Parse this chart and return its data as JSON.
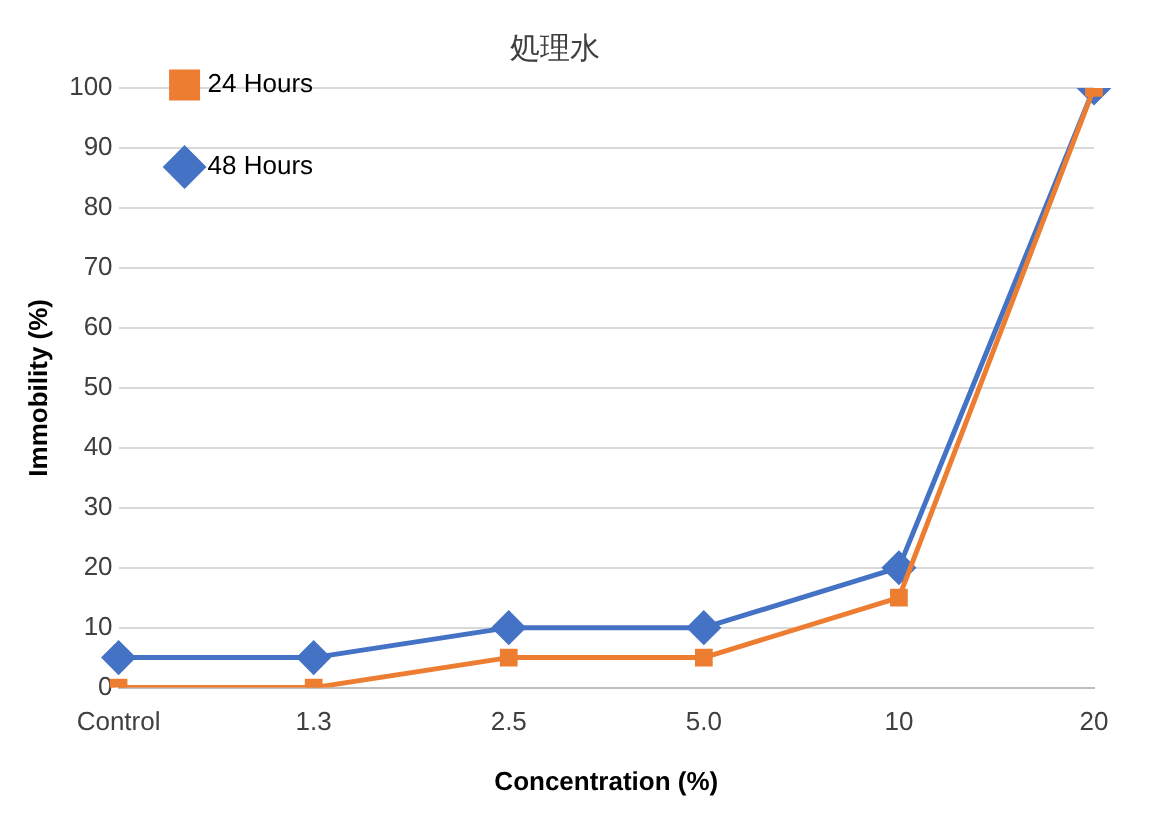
{
  "chart_data": {
    "type": "line",
    "title": "処理水",
    "xlabel": "Concentration (%)",
    "ylabel": "Immobility (%)",
    "categories": [
      "Control",
      "1.3",
      "2.5",
      "5.0",
      "10",
      "20"
    ],
    "series": [
      {
        "name": "24 Hours",
        "color": "#ed7d31",
        "marker": "square",
        "values": [
          0,
          0,
          5,
          5,
          15,
          100
        ]
      },
      {
        "name": "48 Hours",
        "color": "#4472c4",
        "marker": "diamond",
        "values": [
          5,
          5,
          10,
          10,
          20,
          100
        ]
      }
    ],
    "ylim": [
      0,
      100
    ],
    "yticks": [
      0,
      10,
      20,
      30,
      40,
      50,
      60,
      70,
      80,
      90,
      100
    ],
    "grid": "y",
    "legend": "top left",
    "line_style": "solid"
  }
}
